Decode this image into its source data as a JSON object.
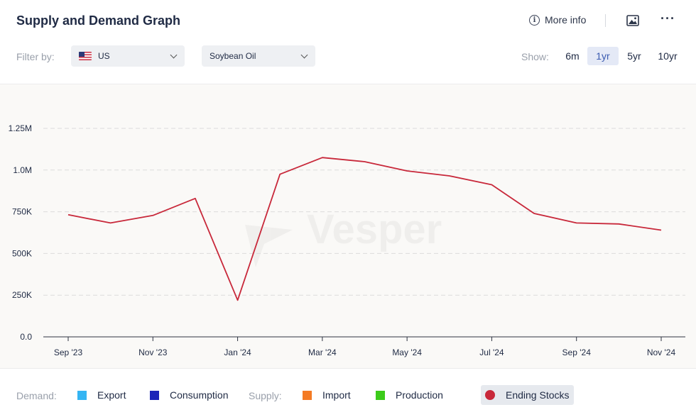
{
  "header": {
    "title": "Supply and Demand Graph",
    "more_info_label": "More info",
    "icons": [
      "info-icon",
      "image-icon",
      "kebab-menu-icon"
    ]
  },
  "filters": {
    "label": "Filter by:",
    "country": "US",
    "commodity": "Soybean Oil"
  },
  "range": {
    "label": "Show:",
    "options": [
      "6m",
      "1yr",
      "5yr",
      "10yr"
    ],
    "selected": "1yr"
  },
  "colors": {
    "line": "#c8283a",
    "export": "#35b5f3",
    "consumption": "#1b24b8",
    "import": "#f47b24",
    "production": "#3ccb1a",
    "ending_stocks": "#c8283a"
  },
  "legend": {
    "demand_label": "Demand:",
    "supply_label": "Supply:",
    "export": "Export",
    "consumption": "Consumption",
    "import": "Import",
    "production": "Production",
    "ending_stocks": "Ending Stocks"
  },
  "chart_data": {
    "type": "line",
    "x": [
      "Sep '23",
      "Oct '23",
      "Nov '23",
      "Dec '23",
      "Jan '24",
      "Feb '24",
      "Mar '24",
      "Apr '24",
      "May '24",
      "Jun '24",
      "Jul '24",
      "Aug '24",
      "Sep '24",
      "Oct '24",
      "Nov '24"
    ],
    "x_tick_labels": [
      "Sep '23",
      "Nov '23",
      "Jan '24",
      "Mar '24",
      "May '24",
      "Jul '24",
      "Sep '24",
      "Nov '24"
    ],
    "series": [
      {
        "name": "Ending Stocks",
        "values": [
          732000,
          683000,
          728000,
          830000,
          220000,
          975000,
          1075000,
          1050000,
          995000,
          965000,
          912000,
          740000,
          683000,
          677000,
          640000
        ]
      }
    ],
    "y_ticks": [
      0,
      250000,
      500000,
      750000,
      1000000,
      1250000
    ],
    "y_tick_labels": [
      "0.0",
      "250K",
      "500K",
      "750K",
      "1.0M",
      "1.25M"
    ],
    "ylim": [
      0,
      1250000
    ],
    "grid": true,
    "watermark": "Vesper"
  }
}
